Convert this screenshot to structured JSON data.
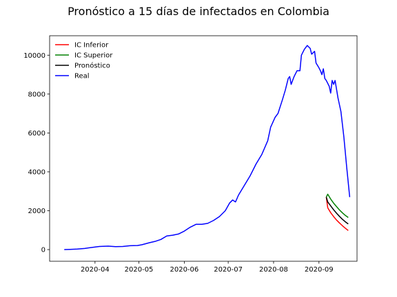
{
  "chart_data": {
    "type": "line",
    "title": "Pronóstico a 15 días de infectados en Colombia",
    "xlabel": "",
    "ylabel": "",
    "xlim": [
      "2020-03-01",
      "2020-09-27"
    ],
    "ylim": [
      -600,
      11000
    ],
    "x_ticks": [
      "2020-04-01",
      "2020-05-01",
      "2020-06-01",
      "2020-07-01",
      "2020-08-01",
      "2020-09-01"
    ],
    "x_tick_labels": [
      "2020-04",
      "2020-05",
      "2020-06",
      "2020-07",
      "2020-08",
      "2020-09"
    ],
    "y_ticks": [
      0,
      2000,
      4000,
      6000,
      8000,
      10000
    ],
    "grid": false,
    "legend_position": "top-left",
    "series": [
      {
        "name": "IC Inferior",
        "color": "#ff0000",
        "points": [
          [
            "2020-09-06",
            2700
          ],
          [
            "2020-09-07",
            2150
          ],
          [
            "2020-09-09",
            1900
          ],
          [
            "2020-09-11",
            1700
          ],
          [
            "2020-09-13",
            1520
          ],
          [
            "2020-09-15",
            1370
          ],
          [
            "2020-09-17",
            1230
          ],
          [
            "2020-09-19",
            1100
          ],
          [
            "2020-09-21",
            980
          ]
        ]
      },
      {
        "name": "IC Superior",
        "color": "#008000",
        "points": [
          [
            "2020-09-06",
            2700
          ],
          [
            "2020-09-07",
            2850
          ],
          [
            "2020-09-09",
            2600
          ],
          [
            "2020-09-11",
            2390
          ],
          [
            "2020-09-13",
            2210
          ],
          [
            "2020-09-15",
            2040
          ],
          [
            "2020-09-17",
            1890
          ],
          [
            "2020-09-19",
            1760
          ],
          [
            "2020-09-21",
            1650
          ]
        ]
      },
      {
        "name": "Pronóstico",
        "color": "#000000",
        "points": [
          [
            "2020-09-06",
            2700
          ],
          [
            "2020-09-07",
            2450
          ],
          [
            "2020-09-09",
            2250
          ],
          [
            "2020-09-11",
            2050
          ],
          [
            "2020-09-13",
            1870
          ],
          [
            "2020-09-15",
            1710
          ],
          [
            "2020-09-17",
            1560
          ],
          [
            "2020-09-19",
            1430
          ],
          [
            "2020-09-21",
            1320
          ]
        ]
      },
      {
        "name": "Real",
        "color": "#0000ff",
        "points": [
          [
            "2020-03-11",
            0
          ],
          [
            "2020-03-15",
            10
          ],
          [
            "2020-03-20",
            30
          ],
          [
            "2020-03-25",
            60
          ],
          [
            "2020-03-30",
            110
          ],
          [
            "2020-04-04",
            160
          ],
          [
            "2020-04-10",
            180
          ],
          [
            "2020-04-15",
            150
          ],
          [
            "2020-04-20",
            160
          ],
          [
            "2020-04-25",
            200
          ],
          [
            "2020-04-30",
            210
          ],
          [
            "2020-05-03",
            250
          ],
          [
            "2020-05-08",
            350
          ],
          [
            "2020-05-12",
            420
          ],
          [
            "2020-05-16",
            520
          ],
          [
            "2020-05-20",
            700
          ],
          [
            "2020-05-24",
            740
          ],
          [
            "2020-05-28",
            800
          ],
          [
            "2020-06-01",
            950
          ],
          [
            "2020-06-05",
            1150
          ],
          [
            "2020-06-09",
            1300
          ],
          [
            "2020-06-13",
            1300
          ],
          [
            "2020-06-17",
            1350
          ],
          [
            "2020-06-21",
            1500
          ],
          [
            "2020-06-25",
            1700
          ],
          [
            "2020-06-29",
            2000
          ],
          [
            "2020-07-02",
            2400
          ],
          [
            "2020-07-04",
            2550
          ],
          [
            "2020-07-06",
            2450
          ],
          [
            "2020-07-08",
            2800
          ],
          [
            "2020-07-12",
            3300
          ],
          [
            "2020-07-16",
            3800
          ],
          [
            "2020-07-20",
            4400
          ],
          [
            "2020-07-24",
            4900
          ],
          [
            "2020-07-28",
            5600
          ],
          [
            "2020-07-30",
            6300
          ],
          [
            "2020-08-02",
            6800
          ],
          [
            "2020-08-04",
            7000
          ],
          [
            "2020-08-07",
            7700
          ],
          [
            "2020-08-09",
            8200
          ],
          [
            "2020-08-11",
            8800
          ],
          [
            "2020-08-12",
            8900
          ],
          [
            "2020-08-13",
            8500
          ],
          [
            "2020-08-15",
            8900
          ],
          [
            "2020-08-17",
            9200
          ],
          [
            "2020-08-19",
            9200
          ],
          [
            "2020-08-20",
            10000
          ],
          [
            "2020-08-22",
            10300
          ],
          [
            "2020-08-24",
            10500
          ],
          [
            "2020-08-26",
            10350
          ],
          [
            "2020-08-27",
            10050
          ],
          [
            "2020-08-29",
            10200
          ],
          [
            "2020-08-30",
            9600
          ],
          [
            "2020-09-01",
            9350
          ],
          [
            "2020-09-02",
            9200
          ],
          [
            "2020-09-03",
            9000
          ],
          [
            "2020-09-04",
            9300
          ],
          [
            "2020-09-05",
            8800
          ],
          [
            "2020-09-06",
            8700
          ],
          [
            "2020-09-08",
            8400
          ],
          [
            "2020-09-09",
            8050
          ],
          [
            "2020-09-10",
            8700
          ],
          [
            "2020-09-11",
            8500
          ],
          [
            "2020-09-12",
            8700
          ],
          [
            "2020-09-14",
            7800
          ],
          [
            "2020-09-16",
            7100
          ],
          [
            "2020-09-18",
            5800
          ],
          [
            "2020-09-20",
            4200
          ],
          [
            "2020-09-22",
            2700
          ]
        ]
      }
    ]
  }
}
